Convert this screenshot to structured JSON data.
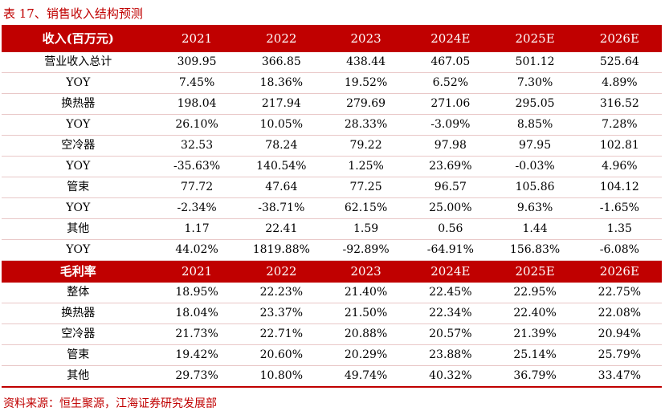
{
  "caption": "表 17、销售收入结构预测",
  "revenue_table": {
    "header": [
      "收入(百万元)",
      "2021",
      "2022",
      "2023",
      "2024E",
      "2025E",
      "2026E"
    ],
    "rows": [
      [
        "营业收入总计",
        "309.95",
        "366.85",
        "438.44",
        "467.05",
        "501.12",
        "525.64"
      ],
      [
        "YOY",
        "7.45%",
        "18.36%",
        "19.52%",
        "6.52%",
        "7.30%",
        "4.89%"
      ],
      [
        "换热器",
        "198.04",
        "217.94",
        "279.69",
        "271.06",
        "295.05",
        "316.52"
      ],
      [
        "YOY",
        "26.10%",
        "10.05%",
        "28.33%",
        "-3.09%",
        "8.85%",
        "7.28%"
      ],
      [
        "空冷器",
        "32.53",
        "78.24",
        "79.22",
        "97.98",
        "97.95",
        "102.81"
      ],
      [
        "YOY",
        "-35.63%",
        "140.54%",
        "1.25%",
        "23.69%",
        "-0.03%",
        "4.96%"
      ],
      [
        "管束",
        "77.72",
        "47.64",
        "77.25",
        "96.57",
        "105.86",
        "104.12"
      ],
      [
        "YOY",
        "-2.34%",
        "-38.71%",
        "62.15%",
        "25.00%",
        "9.63%",
        "-1.65%"
      ],
      [
        "其他",
        "1.17",
        "22.41",
        "1.59",
        "0.56",
        "1.44",
        "1.35"
      ],
      [
        "YOY",
        "44.02%",
        "1819.88%",
        "-92.89%",
        "-64.91%",
        "156.83%",
        "-6.08%"
      ]
    ]
  },
  "margin_table": {
    "header": [
      "毛利率",
      "2021",
      "2022",
      "2023",
      "2024E",
      "2025E",
      "2026E"
    ],
    "rows": [
      [
        "整体",
        "18.95%",
        "22.23%",
        "21.40%",
        "22.45%",
        "22.95%",
        "22.75%"
      ],
      [
        "换热器",
        "18.04%",
        "23.37%",
        "21.50%",
        "22.34%",
        "22.40%",
        "22.08%"
      ],
      [
        "空冷器",
        "21.73%",
        "22.71%",
        "20.88%",
        "20.57%",
        "21.39%",
        "20.94%"
      ],
      [
        "管束",
        "19.42%",
        "20.60%",
        "20.29%",
        "23.88%",
        "25.14%",
        "25.79%"
      ],
      [
        "其他",
        "29.73%",
        "10.80%",
        "49.74%",
        "40.32%",
        "36.79%",
        "33.47%"
      ]
    ]
  },
  "source": "资料来源：恒生聚源，江海证券研究发展部",
  "colors": {
    "header_bg": "#c00000",
    "header_text": "#ffffff",
    "caption_text": "#c00000",
    "row_border": "#e9c8c8"
  }
}
